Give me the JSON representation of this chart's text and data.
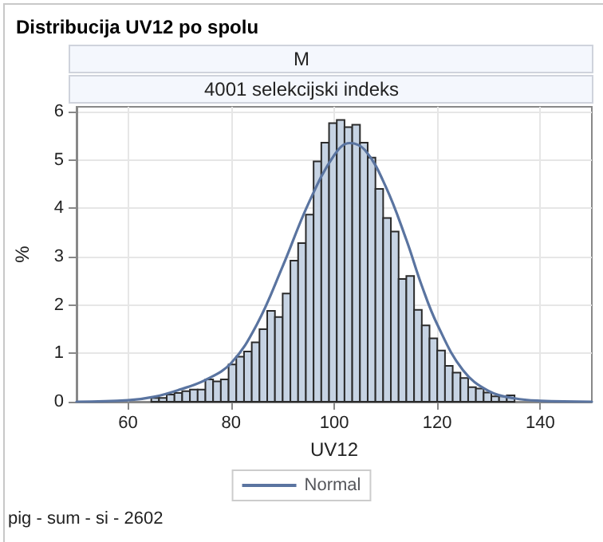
{
  "chart_data": {
    "type": "histogram",
    "title": "Distribucija UV12 po spolu",
    "subtitle": "M",
    "xlabel": "UV12",
    "ylabel": "%",
    "annotations": [
      "4001 selekcijski indeks",
      "pig - sum - si - 2602"
    ],
    "bins": [
      64.5,
      66,
      67.5,
      69,
      70.5,
      72,
      73.5,
      75,
      76.5,
      78,
      79.5,
      81,
      82.5,
      84,
      85.5,
      87,
      88.5,
      90,
      91.5,
      93,
      94.5,
      96,
      97.5,
      99,
      100.5,
      102,
      103.5,
      105,
      106.5,
      108,
      109.5,
      111,
      112.5,
      114,
      115.5,
      117,
      118.5,
      120,
      121.5,
      123,
      124.5,
      126,
      127.5,
      129,
      130.5,
      132,
      133.5,
      135,
      136.5,
      138
    ],
    "series": [
      {
        "color": "#c6d3e3",
        "values": [
          0.08,
          0.08,
          0.15,
          0.18,
          0.22,
          0.25,
          0.25,
          0.46,
          0.42,
          0.46,
          0.77,
          0.93,
          1.04,
          1.23,
          1.5,
          1.88,
          1.75,
          2.24,
          2.92,
          3.28,
          3.87,
          4.97,
          5.36,
          5.76,
          5.83,
          5.68,
          5.73,
          5.36,
          5.05,
          4.4,
          3.8,
          3.52,
          2.54,
          2.6,
          1.9,
          1.58,
          1.31,
          1.06,
          0.74,
          0.6,
          0.49,
          0.3,
          0.27,
          0.19,
          0.11,
          0.11,
          0.13,
          null,
          null
        ]
      },
      {
        "type": "line",
        "name": "Normal",
        "color": "#5a74a0",
        "x": [
          50,
          60,
          65,
          70,
          75,
          80,
          85,
          90,
          95,
          100,
          103,
          106,
          110,
          114,
          117,
          120,
          125,
          130,
          135,
          140,
          150
        ],
        "values": [
          0,
          0.03,
          0.1,
          0.25,
          0.45,
          0.8,
          1.6,
          2.8,
          4.1,
          5.1,
          5.35,
          5.2,
          4.45,
          3.35,
          2.4,
          1.6,
          0.65,
          0.22,
          0.07,
          0.02,
          0
        ]
      }
    ],
    "xlim": [
      50,
      150
    ],
    "xticks": [
      60,
      80,
      100,
      120,
      140
    ],
    "ylim": [
      0,
      6.1
    ],
    "yticks": [
      0,
      1,
      2,
      3,
      4,
      5,
      6
    ],
    "grid": true,
    "legend": "bottom",
    "marker": "none",
    "line_style": "solid"
  }
}
